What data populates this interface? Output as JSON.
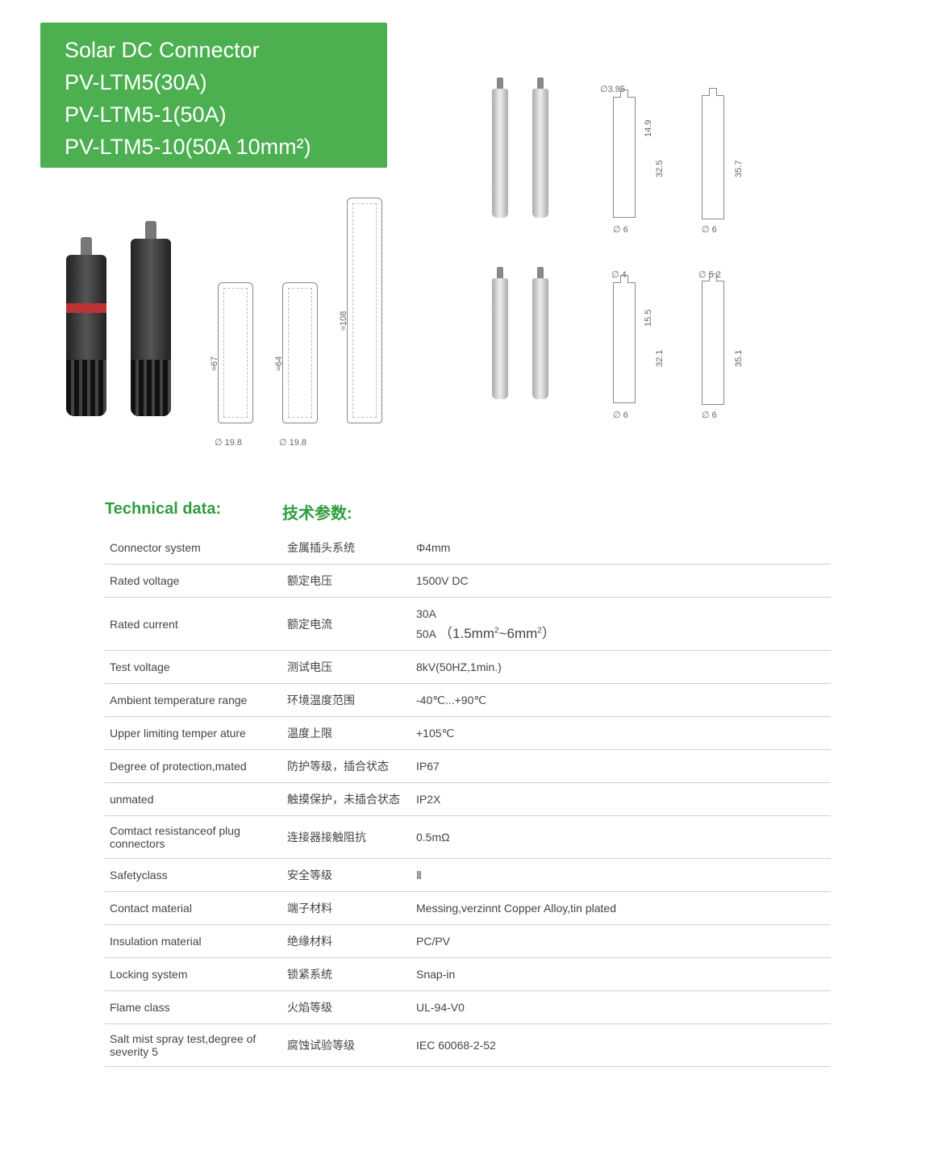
{
  "colors": {
    "brand_green": "#4caf50",
    "heading_green": "#2e9e3f",
    "rule": "#d0d0d0",
    "dim_text": "#666666",
    "outline_stroke": "#888888"
  },
  "title": {
    "line1": "Solar DC Connector",
    "line2": "PV-LTM5(30A)",
    "line3": "PV-LTM5-1(50A)",
    "line4": "PV-LTM5-10(50A  10mm²)"
  },
  "dimensions": {
    "conn_outline_a_height": "≈67",
    "conn_outline_b_height": "≈64",
    "conn_outline_c_height": "≈108",
    "conn_outline_diameter": "∅ 19.8",
    "pin_top_a": {
      "dia_top": "∅3.95",
      "h1": "14.9",
      "h_total": "32.5",
      "dia_base": "∅ 6"
    },
    "pin_top_b": {
      "h_total": "35.7",
      "dia_base": "∅ 6"
    },
    "pin_bot_a": {
      "dia_top": "∅ 4",
      "h1": "15.5",
      "h_total": "32.1",
      "dia_base": "∅ 6"
    },
    "pin_bot_b": {
      "dia_top": "∅ 5.2",
      "h_total": "35.1",
      "dia_base": "∅ 6"
    }
  },
  "tech_header": {
    "en": "Technical data:",
    "cn": "技术参数:"
  },
  "spec_rows": [
    {
      "en": "Connector system",
      "cn": "金属插头系统",
      "val": "Φ4mm"
    },
    {
      "en": "Rated voltage",
      "cn": "额定电压",
      "val": "1500V DC"
    },
    {
      "en": "Rated current",
      "cn": "额定电流",
      "val": "30A / 50A（1.5mm²~6mm²）"
    },
    {
      "en": "Test voltage",
      "cn": "测试电压",
      "val": "8kV(50HZ,1min.)"
    },
    {
      "en": "Ambient temperature range",
      "cn": "环境温度范围",
      "val": "-40℃...+90℃"
    },
    {
      "en": "Upper limiting temper ature",
      "cn": "温度上限",
      "val": "+105℃"
    },
    {
      "en": "Degree of protection,mated",
      "cn": "防护等级，插合状态",
      "val": "IP67"
    },
    {
      "en": "unmated",
      "cn": "触摸保护，未插合状态",
      "val": "IP2X"
    },
    {
      "en": "Comtact resistanceof plug connectors",
      "cn": "连接器接触阻抗",
      "val": "0.5mΩ"
    },
    {
      "en": "Safetyclass",
      "cn": "安全等级",
      "val": "Ⅱ"
    },
    {
      "en": "Contact material",
      "cn": "端子材料",
      "val": "Messing,verzinnt    Copper Alloy,tin plated"
    },
    {
      "en": "Insulation material",
      "cn": "绝缘材料",
      "val": "PC/PV"
    },
    {
      "en": "Locking system",
      "cn": "锁紧系统",
      "val": "Snap-in"
    },
    {
      "en": "Flame class",
      "cn": "火焰等级",
      "val": "UL-94-V0"
    },
    {
      "en": "Salt mist spray test,degree of severity 5",
      "cn": "腐蚀试验等级",
      "val": "IEC 60068-2-52"
    }
  ]
}
